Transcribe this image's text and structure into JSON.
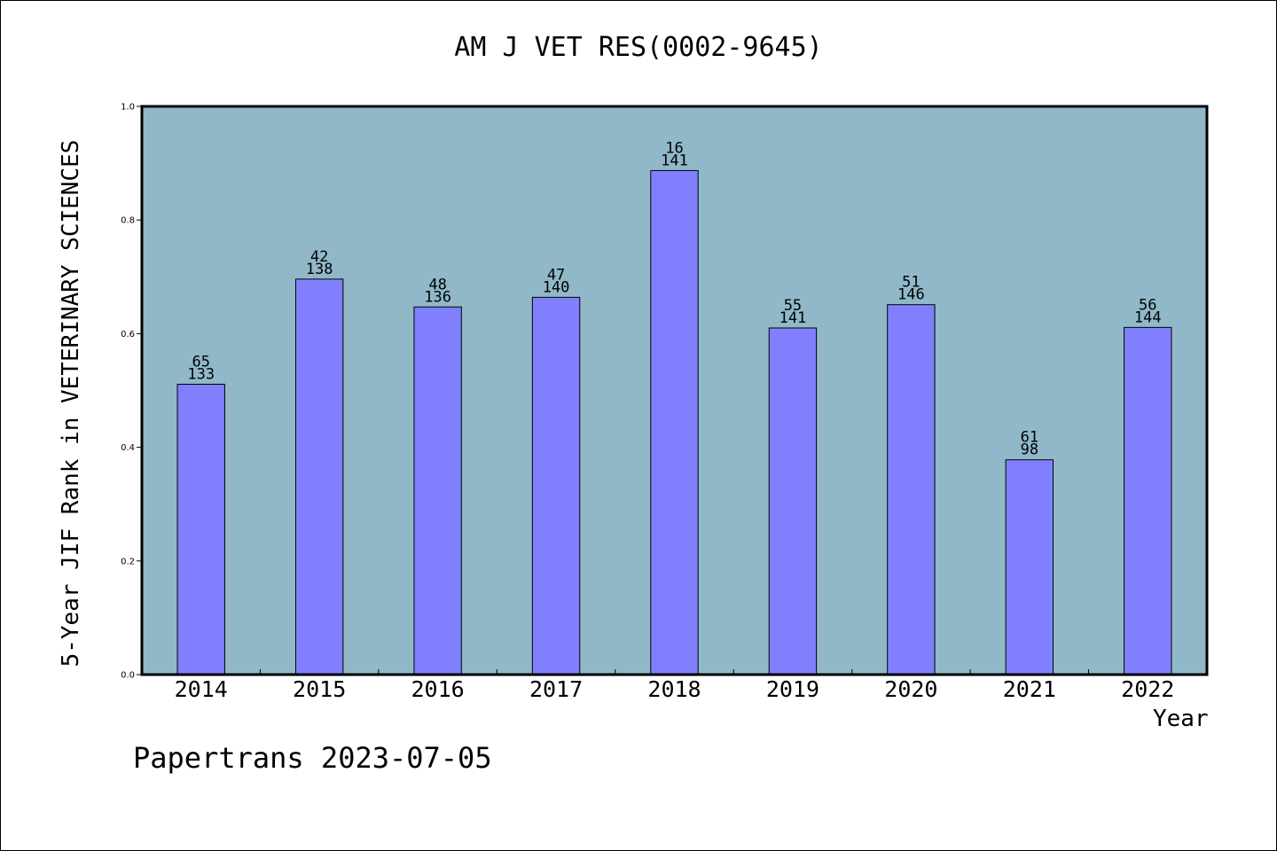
{
  "chart_data": {
    "type": "bar",
    "title": "AM J VET RES(0002-9645)",
    "xlabel": "Year",
    "ylabel": "5-Year JIF Rank in VETERINARY SCIENCES",
    "ylim": [
      0,
      1.0
    ],
    "yticks": [
      "0.0",
      "0.2",
      "0.4",
      "0.6",
      "0.8",
      "1.0"
    ],
    "categories": [
      "2014",
      "2015",
      "2016",
      "2017",
      "2018",
      "2019",
      "2020",
      "2021",
      "2022"
    ],
    "values": [
      0.511,
      0.696,
      0.647,
      0.664,
      0.887,
      0.61,
      0.651,
      0.378,
      0.611
    ],
    "rank": [
      "65",
      "42",
      "48",
      "47",
      "16",
      "55",
      "51",
      "61",
      "56"
    ],
    "total": [
      "133",
      "138",
      "136",
      "140",
      "141",
      "141",
      "146",
      "98",
      "144"
    ],
    "grid": false,
    "colors": {
      "plot_bg": "#90b8c8",
      "bar": "#8080ff",
      "bar_border": "#000000"
    }
  },
  "footer": {
    "text": "Papertrans 2023-07-05"
  }
}
